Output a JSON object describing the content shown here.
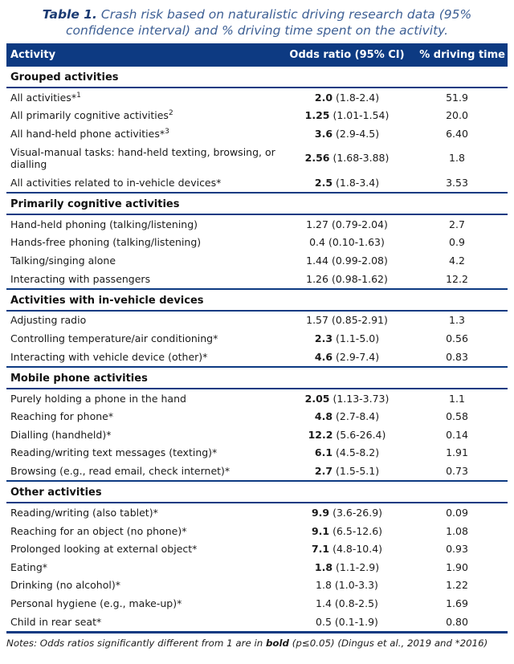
{
  "title": {
    "label": "Table 1.",
    "text": " Crash risk based on naturalistic driving research data (95% confidence interval) and % driving time spent on the activity."
  },
  "table": {
    "columns": [
      "Activity",
      "Odds ratio (95% CI)",
      "% driving time"
    ],
    "sections": [
      {
        "name": "Grouped activities",
        "rows": [
          {
            "activity": "All activities*",
            "sup": "1",
            "odds": "2.0",
            "odds_bold": true,
            "ci": "(1.8-2.4)",
            "pct": "51.9"
          },
          {
            "activity": "All primarily cognitive activities",
            "sup": "2",
            "odds": "1.25",
            "odds_bold": true,
            "ci": "(1.01-1.54)",
            "pct": "20.0"
          },
          {
            "activity": "All hand-held phone activities*",
            "sup": "3",
            "odds": "3.6",
            "odds_bold": true,
            "ci": "(2.9-4.5)",
            "pct": "6.40"
          },
          {
            "activity": "Visual-manual tasks: hand-held texting, browsing, or dialling",
            "odds": "2.56",
            "odds_bold": true,
            "ci": "(1.68-3.88)",
            "pct": "1.8"
          },
          {
            "activity": "All activities related to in-vehicle devices*",
            "odds": "2.5",
            "odds_bold": true,
            "ci": "(1.8-3.4)",
            "pct": "3.53"
          }
        ]
      },
      {
        "name": "Primarily cognitive activities",
        "rows": [
          {
            "activity": "Hand-held phoning (talking/listening)",
            "odds": "1.27",
            "odds_bold": false,
            "ci": "(0.79-2.04)",
            "pct": "2.7"
          },
          {
            "activity": "Hands-free phoning (talking/listening)",
            "odds": "0.4",
            "odds_bold": false,
            "ci": "(0.10-1.63)",
            "pct": "0.9"
          },
          {
            "activity": "Talking/singing alone",
            "odds": "1.44",
            "odds_bold": false,
            "ci": "(0.99-2.08)",
            "pct": "4.2"
          },
          {
            "activity": "Interacting with passengers",
            "odds": "1.26",
            "odds_bold": false,
            "ci": "(0.98-1.62)",
            "pct": "12.2"
          }
        ]
      },
      {
        "name": "Activities with in-vehicle devices",
        "rows": [
          {
            "activity": "Adjusting radio",
            "odds": "1.57",
            "odds_bold": false,
            "ci": "(0.85-2.91)",
            "pct": "1.3"
          },
          {
            "activity": "Controlling temperature/air conditioning*",
            "odds": "2.3",
            "odds_bold": true,
            "ci": "(1.1-5.0)",
            "pct": "0.56"
          },
          {
            "activity": "Interacting with vehicle device (other)*",
            "odds": "4.6",
            "odds_bold": true,
            "ci": "(2.9-7.4)",
            "pct": "0.83"
          }
        ]
      },
      {
        "name": "Mobile phone activities",
        "rows": [
          {
            "activity": "Purely holding a phone in the hand",
            "odds": "2.05",
            "odds_bold": true,
            "ci": "(1.13-3.73)",
            "pct": "1.1"
          },
          {
            "activity": "Reaching for phone*",
            "odds": "4.8",
            "odds_bold": true,
            "ci": "(2.7-8.4)",
            "pct": "0.58"
          },
          {
            "activity": "Dialling (handheld)*",
            "odds": "12.2",
            "odds_bold": true,
            "ci": "(5.6-26.4)",
            "pct": "0.14"
          },
          {
            "activity": "Reading/writing text messages (texting)*",
            "odds": "6.1",
            "odds_bold": true,
            "ci": "(4.5-8.2)",
            "pct": "1.91"
          },
          {
            "activity": "Browsing (e.g., read email, check internet)*",
            "odds": "2.7",
            "odds_bold": true,
            "ci": "(1.5-5.1)",
            "pct": "0.73"
          }
        ]
      },
      {
        "name": "Other activities",
        "rows": [
          {
            "activity": "Reading/writing (also tablet)*",
            "odds": "9.9",
            "odds_bold": true,
            "ci": "(3.6-26.9)",
            "pct": "0.09"
          },
          {
            "activity": "Reaching for an object (no phone)*",
            "odds": "9.1",
            "odds_bold": true,
            "ci": "(6.5-12.6)",
            "pct": "1.08"
          },
          {
            "activity": "Prolonged looking at external object*",
            "odds": "7.1",
            "odds_bold": true,
            "ci": "(4.8-10.4)",
            "pct": "0.93"
          },
          {
            "activity": "Eating*",
            "odds": "1.8",
            "odds_bold": true,
            "ci": "(1.1-2.9)",
            "pct": "1.90"
          },
          {
            "activity": "Drinking (no alcohol)*",
            "odds": "1.8",
            "odds_bold": false,
            "ci": "(1.0-3.3)",
            "pct": "1.22"
          },
          {
            "activity": "Personal hygiene (e.g., make-up)*",
            "odds": "1.4",
            "odds_bold": false,
            "ci": "(0.8-2.5)",
            "pct": "1.69"
          },
          {
            "activity": "Child in rear seat*",
            "odds": "0.5",
            "odds_bold": false,
            "ci": "(0.1-1.9)",
            "pct": "0.80"
          }
        ]
      }
    ]
  },
  "notes": {
    "prefix": "Notes: Odds ratios significantly different from 1 are in ",
    "bold_word": "bold",
    "suffix": " (p≤0.05) (Dingus et al., 2019 and *2016)"
  },
  "colors": {
    "header_bg": "#0d3a82",
    "rule": "#0d3a82",
    "title_label": "#1b3b73",
    "title_text": "#3d5f94"
  }
}
